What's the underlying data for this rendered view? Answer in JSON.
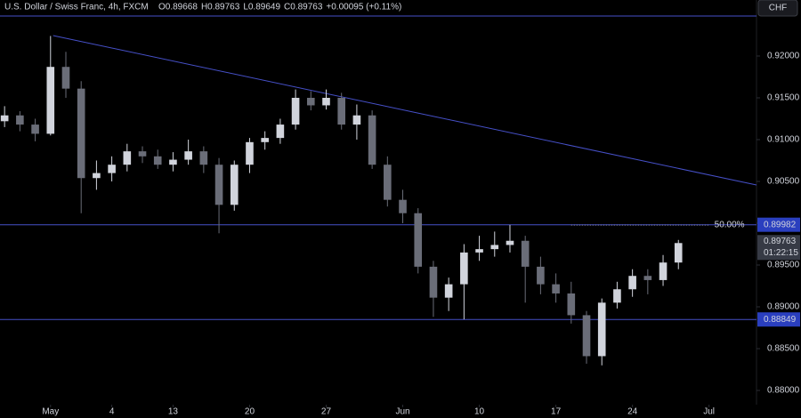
{
  "chart_data": {
    "type": "candlestick",
    "title": "U.S. Dollar / Swiss Franc, 4h, FXCM",
    "ohlc": [
      "O0.89668",
      "H0.89763",
      "L0.89649",
      "C0.89763",
      "+0.00095 (+0.11%)"
    ],
    "currency": "CHF",
    "x": [
      -3,
      -2,
      -1,
      0,
      1,
      2,
      3,
      4,
      5,
      6,
      7,
      8,
      9,
      10,
      11,
      12,
      13,
      14,
      15,
      16,
      17,
      18,
      19,
      20,
      21,
      22,
      23,
      24,
      25,
      26,
      27,
      28,
      29,
      30,
      31,
      32,
      33,
      34,
      35,
      36,
      37,
      38,
      39,
      40,
      41
    ],
    "open": [
      0.9122,
      0.9129,
      0.9118,
      0.9107,
      0.9187,
      0.9161,
      0.9054,
      0.906,
      0.907,
      0.9086,
      0.908,
      0.907,
      0.9076,
      0.9086,
      0.907,
      0.9022,
      0.907,
      0.9097,
      0.9102,
      0.9118,
      0.915,
      0.9141,
      0.915,
      0.9118,
      0.9129,
      0.907,
      0.9028,
      0.9012,
      0.8948,
      0.8911,
      0.8927,
      0.8965,
      0.8969,
      0.8974,
      0.8979,
      0.8948,
      0.8927,
      0.8916,
      0.889,
      0.8841,
      0.8905,
      0.8921,
      0.8937,
      0.8932,
      0.8953
    ],
    "high": [
      0.914,
      0.9134,
      0.9125,
      0.9224,
      0.9205,
      0.917,
      0.9075,
      0.908,
      0.9095,
      0.9092,
      0.9088,
      0.9085,
      0.91,
      0.9092,
      0.9078,
      0.9075,
      0.9102,
      0.911,
      0.9125,
      0.916,
      0.9158,
      0.916,
      0.9156,
      0.9142,
      0.9135,
      0.908,
      0.904,
      0.9018,
      0.8955,
      0.8935,
      0.8975,
      0.8985,
      0.899,
      0.8998,
      0.8985,
      0.896,
      0.894,
      0.893,
      0.8895,
      0.891,
      0.893,
      0.8945,
      0.8945,
      0.8962,
      0.898
    ],
    "low": [
      0.9115,
      0.911,
      0.9098,
      0.9105,
      0.915,
      0.9012,
      0.904,
      0.905,
      0.9062,
      0.9072,
      0.9065,
      0.9062,
      0.907,
      0.906,
      0.8988,
      0.9015,
      0.906,
      0.9088,
      0.9095,
      0.9112,
      0.9135,
      0.9136,
      0.9112,
      0.91,
      0.9065,
      0.902,
      0.9,
      0.894,
      0.8888,
      0.8895,
      0.8885,
      0.8955,
      0.896,
      0.8965,
      0.8905,
      0.8915,
      0.8905,
      0.888,
      0.8832,
      0.883,
      0.8898,
      0.8912,
      0.8915,
      0.8925,
      0.8945
    ],
    "close": [
      0.9129,
      0.9118,
      0.9107,
      0.9187,
      0.9161,
      0.9054,
      0.906,
      0.907,
      0.9086,
      0.908,
      0.907,
      0.9076,
      0.9086,
      0.907,
      0.9022,
      0.907,
      0.9097,
      0.9102,
      0.9118,
      0.915,
      0.9141,
      0.915,
      0.9118,
      0.9129,
      0.907,
      0.9028,
      0.9012,
      0.8948,
      0.8911,
      0.8927,
      0.8965,
      0.8969,
      0.8974,
      0.8979,
      0.8948,
      0.8927,
      0.8916,
      0.889,
      0.8841,
      0.8905,
      0.8921,
      0.8937,
      0.8932,
      0.8953,
      0.89763
    ],
    "xlim": [
      -3.3,
      46.1
    ],
    "ylim": [
      0.8783,
      0.9267
    ],
    "xticks": [
      {
        "value": 0,
        "label": "May"
      },
      4,
      {
        "value": 8,
        "label": "13"
      },
      {
        "value": 13,
        "label": "20"
      },
      {
        "value": 18,
        "label": "27"
      },
      {
        "value": 23,
        "label": "Jun"
      },
      {
        "value": 28,
        "label": "10"
      },
      {
        "value": 33,
        "label": "17"
      },
      {
        "value": 38,
        "label": "24"
      },
      {
        "value": 43,
        "label": "Jul"
      }
    ],
    "yticks": [
      {
        "value": 0.92,
        "label": "0.92000"
      },
      {
        "value": 0.915,
        "label": "0.91500"
      },
      {
        "value": 0.91,
        "label": "0.91000"
      },
      {
        "value": 0.905,
        "label": "0.90500"
      },
      {
        "value": 0.9,
        "label": "0.90000"
      },
      {
        "value": 0.895,
        "label": "0.89500"
      },
      {
        "value": 0.89,
        "label": "0.89000"
      },
      {
        "value": 0.885,
        "label": "0.88500"
      },
      {
        "value": 0.88,
        "label": "0.88000"
      }
    ],
    "levels": [
      0.92479,
      0.89982,
      0.88849
    ],
    "level_labels": [
      null,
      "0.89982",
      "0.88849"
    ],
    "trendline": {
      "x": [
        0.17,
        46.1
      ],
      "y": [
        0.92245,
        0.90457
      ]
    },
    "fib": {
      "value": 0.89978,
      "label": "50.00%",
      "x": [
        34,
        43
      ]
    },
    "current": {
      "value": 0.89763,
      "countdown": "01:22:15"
    },
    "up_color": "#d1d4dc",
    "down_color": "#6a6d78",
    "line_color": "#4650c8"
  }
}
